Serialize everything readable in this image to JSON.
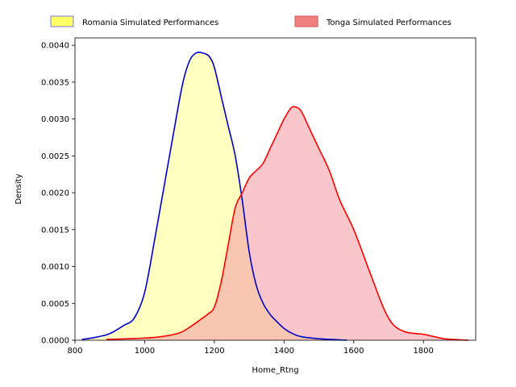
{
  "chart_data": {
    "type": "area",
    "title": "",
    "xlabel": "Home_Rtng",
    "ylabel": "Density",
    "xlim": [
      800,
      1950
    ],
    "ylim": [
      0,
      0.0041
    ],
    "x_ticks": [
      800,
      1000,
      1200,
      1400,
      1600,
      1800
    ],
    "x_tick_labels": [
      "800",
      "1000",
      "1200",
      "1400",
      "1600",
      "1800"
    ],
    "y_ticks": [
      0,
      0.0005,
      0.001,
      0.0015,
      0.002,
      0.0025,
      0.003,
      0.0035,
      0.004
    ],
    "y_tick_labels": [
      "0.0000",
      "0.0005",
      "0.0010",
      "0.0015",
      "0.0020",
      "0.0025",
      "0.0030",
      "0.0035",
      "0.0040"
    ],
    "grid": false,
    "legend_position": "top-center",
    "series": [
      {
        "name": "Romania Simulated Performances",
        "line_color": "#0000cc",
        "fill_color": "#ffff99",
        "legend_fill": "#ffff66",
        "legend_edge": "#7777ee",
        "x": [
          820,
          860,
          900,
          940,
          970,
          1000,
          1030,
          1060,
          1090,
          1110,
          1130,
          1150,
          1170,
          1185,
          1200,
          1220,
          1240,
          1260,
          1280,
          1300,
          1320,
          1340,
          1360,
          1380,
          1400,
          1420,
          1440,
          1460,
          1500,
          1540,
          1580
        ],
        "y": [
          1e-05,
          4e-05,
          9e-05,
          0.0002,
          0.0003,
          0.00065,
          0.0014,
          0.0022,
          0.003,
          0.0035,
          0.0038,
          0.0039,
          0.00389,
          0.00385,
          0.0037,
          0.0033,
          0.0029,
          0.0025,
          0.0019,
          0.0012,
          0.00075,
          0.0005,
          0.00035,
          0.00025,
          0.00016,
          0.0001,
          6e-05,
          4e-05,
          2e-05,
          1e-05,
          0.0
        ]
      },
      {
        "name": "Tonga Simulated Performances",
        "line_color": "#ff0000",
        "fill_color": "#f5a0a8",
        "legend_fill": "#f08080",
        "legend_edge": "#dd5555",
        "x": [
          890,
          950,
          1000,
          1050,
          1100,
          1130,
          1160,
          1180,
          1200,
          1220,
          1240,
          1260,
          1280,
          1300,
          1320,
          1340,
          1360,
          1380,
          1400,
          1420,
          1435,
          1450,
          1470,
          1500,
          1530,
          1560,
          1600,
          1640,
          1680,
          1700,
          1720,
          1750,
          1780,
          1800,
          1830,
          1860,
          1890,
          1930
        ],
        "y": [
          1e-05,
          2e-05,
          3e-05,
          5e-05,
          0.0001,
          0.00018,
          0.00028,
          0.00035,
          0.00045,
          0.0008,
          0.0013,
          0.0018,
          0.002,
          0.0022,
          0.0023,
          0.0024,
          0.0026,
          0.0028,
          0.003,
          0.00315,
          0.00316,
          0.0031,
          0.0029,
          0.0026,
          0.0023,
          0.0019,
          0.0015,
          0.001,
          0.0005,
          0.0003,
          0.00018,
          0.00011,
          9e-05,
          8e-05,
          5e-05,
          2e-05,
          1e-05,
          0.0
        ]
      }
    ]
  }
}
